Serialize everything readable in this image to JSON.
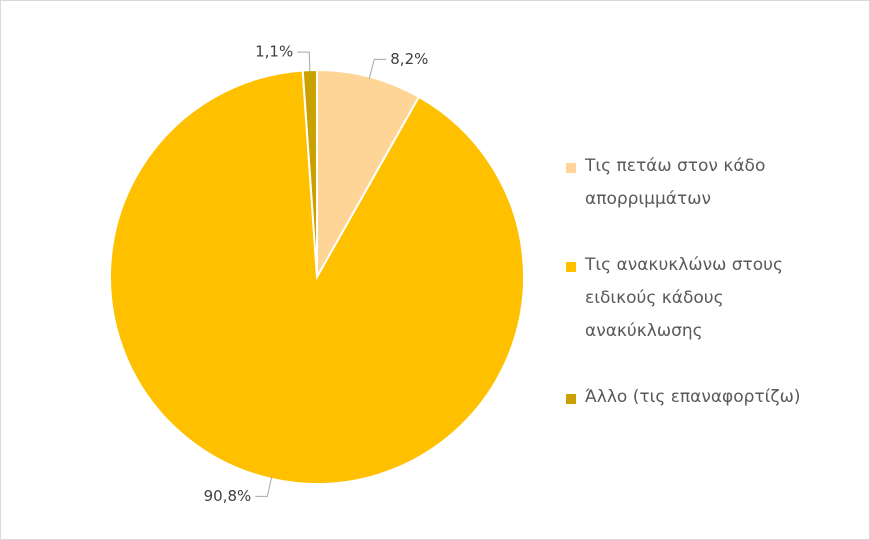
{
  "chart_data": {
    "type": "pie",
    "categories": [
      "Τις πετάω στον κάδο απορριμμάτων",
      "Τις ανακυκλώνω στους ειδικούς κάδους ανακύκλωσης",
      "Άλλο (τις επαναφορτίζω)"
    ],
    "values": [
      8.2,
      90.8,
      1.1
    ],
    "value_labels": [
      "8,2%",
      "90,8%",
      "1,1%"
    ],
    "colors": [
      "#ffd597",
      "#ffc000",
      "#c9a100"
    ],
    "legend": "right"
  }
}
